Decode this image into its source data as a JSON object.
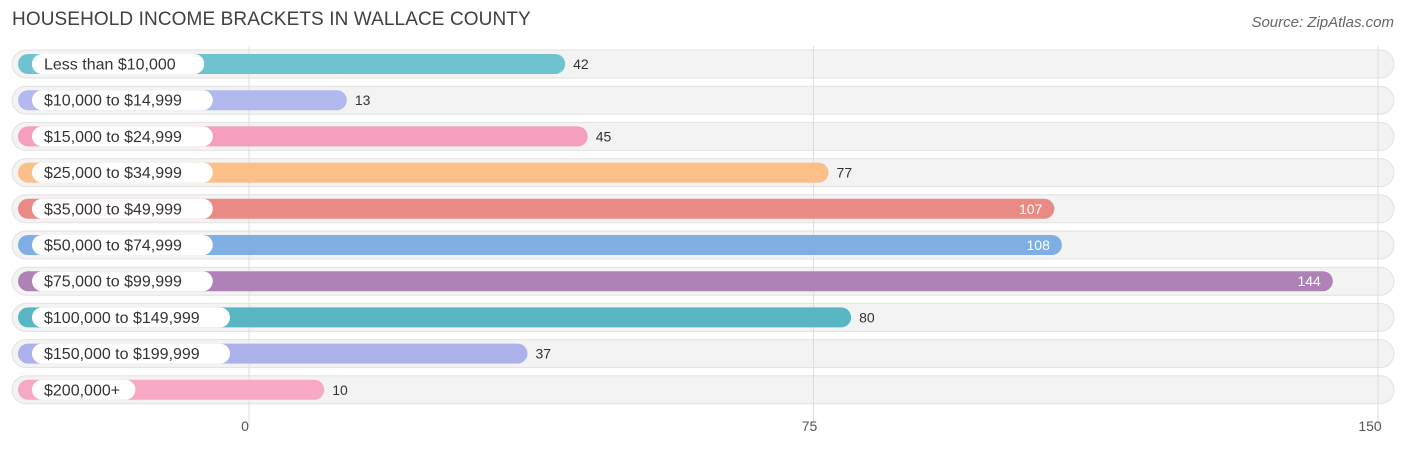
{
  "header": {
    "title": "HOUSEHOLD INCOME BRACKETS IN WALLACE COUNTY",
    "source": "Source: ZipAtlas.com"
  },
  "chart_data": {
    "type": "bar",
    "orientation": "horizontal",
    "title": "HOUSEHOLD INCOME BRACKETS IN WALLACE COUNTY",
    "xlabel": "",
    "ylabel": "",
    "xlim": [
      0,
      150
    ],
    "ticks": [
      0,
      75,
      150
    ],
    "tick_labels": [
      "0",
      "75",
      "150"
    ],
    "grid": true,
    "categories": [
      "Less than $10,000",
      "$10,000 to $14,999",
      "$15,000 to $24,999",
      "$25,000 to $34,999",
      "$35,000 to $49,999",
      "$50,000 to $74,999",
      "$75,000 to $99,999",
      "$100,000 to $149,999",
      "$150,000 to $199,999",
      "$200,000+"
    ],
    "values": [
      42,
      13,
      45,
      77,
      107,
      108,
      144,
      80,
      37,
      10
    ],
    "colors": [
      "#6ec3ce",
      "#b3b8ee",
      "#f59ebe",
      "#fbbf87",
      "#ea8a85",
      "#7eaee3",
      "#ae82b6",
      "#58b6c2",
      "#aeb2ec",
      "#f6a8c4"
    ]
  }
}
